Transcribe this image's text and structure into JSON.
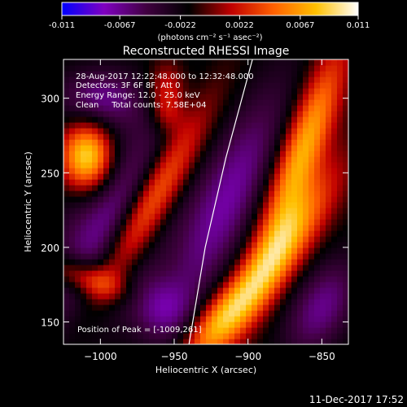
{
  "chart_data": {
    "type": "heatmap",
    "title": "Reconstructed RHESSI Image",
    "xlabel": "Heliocentric X (arcsec)",
    "ylabel": "Heliocentric Y (arcsec)",
    "xlim": [
      -1025,
      -832
    ],
    "ylim": [
      135,
      326
    ],
    "xticks": [
      -1000,
      -950,
      -900,
      -850
    ],
    "yticks": [
      150,
      200,
      250,
      300
    ],
    "colorbar": {
      "min": -0.011,
      "max": 0.011,
      "ticks": [
        -0.011,
        -0.0067,
        -0.0022,
        0.0022,
        0.0067,
        0.011
      ],
      "tick_labels": [
        "-0.011",
        "-0.0067",
        "-0.0022",
        "0.0022",
        "0.0067",
        "0.011"
      ],
      "unit_label": "(photons cm⁻² s⁻¹ asec⁻²)",
      "colors": [
        "#0000ff",
        "#8000c0",
        "#400040",
        "#000000",
        "#c00000",
        "#ff6000",
        "#ffc000",
        "#ffffff"
      ]
    },
    "annotations": [
      "28-Aug-2017 12:22:48.000 to 12:32:48.000",
      "Detectors: 3F 6F 8F, Att 0",
      "Energy Range: 12.0 - 25.0 keV",
      "Clean     Total counts: 7.58E+04"
    ],
    "peak_label": "Position of Peak = [-1009,261]",
    "limb": [
      [
        -940,
        135
      ],
      [
        -929,
        200
      ],
      [
        -915,
        260
      ],
      [
        -897,
        326
      ]
    ],
    "sources": [
      {
        "x": -1009,
        "y": 261,
        "sx": 12,
        "sy": 16,
        "angle": 0,
        "amp": 0.011
      },
      {
        "x": -967,
        "y": 228,
        "sx": 10,
        "sy": 50,
        "angle": 30,
        "amp": 0.0095
      },
      {
        "x": -1010,
        "y": 180,
        "sx": 20,
        "sy": 8,
        "angle": 20,
        "amp": 0.006
      },
      {
        "x": -863,
        "y": 265,
        "sx": 10,
        "sy": 50,
        "angle": 20,
        "amp": 0.009
      },
      {
        "x": -880,
        "y": 195,
        "sx": 11,
        "sy": 45,
        "angle": 35,
        "amp": 0.0085
      },
      {
        "x": -920,
        "y": 150,
        "sx": 10,
        "sy": 25,
        "angle": 40,
        "amp": 0.007
      },
      {
        "x": -955,
        "y": 308,
        "sx": 9,
        "sy": 12,
        "angle": 0,
        "amp": 0.004
      },
      {
        "x": -955,
        "y": 290,
        "sx": 8,
        "sy": 10,
        "angle": 0,
        "amp": 0.0035
      },
      {
        "x": -990,
        "y": 215,
        "sx": 22,
        "sy": 55,
        "angle": 30,
        "amp": -0.006
      },
      {
        "x": -915,
        "y": 230,
        "sx": 15,
        "sy": 60,
        "angle": 25,
        "amp": -0.0055
      },
      {
        "x": -1000,
        "y": 300,
        "sx": 20,
        "sy": 14,
        "angle": 0,
        "amp": -0.005
      },
      {
        "x": -850,
        "y": 160,
        "sx": 14,
        "sy": 25,
        "angle": 30,
        "amp": -0.005
      },
      {
        "x": -960,
        "y": 160,
        "sx": 16,
        "sy": 14,
        "angle": 30,
        "amp": -0.004
      }
    ]
  },
  "footer": {
    "timestamp": "11-Dec-2017 17:52"
  }
}
